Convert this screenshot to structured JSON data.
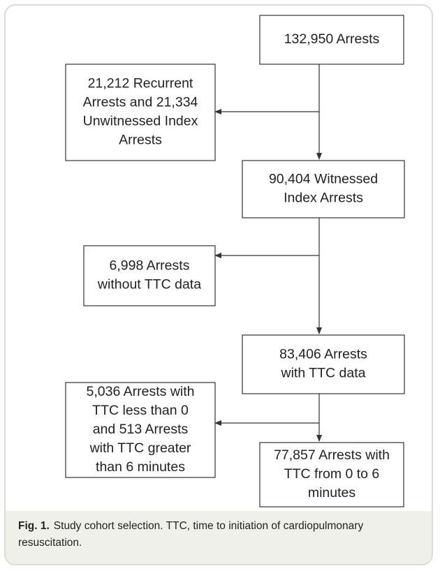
{
  "nodes": [
    {
      "lines": [
        "132,950 Arrests"
      ]
    },
    {
      "lines": [
        "21,212 Recurrent",
        "Arrests and 21,334",
        "Unwitnessed Index",
        "Arrests"
      ]
    },
    {
      "lines": [
        "90,404 Witnessed",
        "Index Arrests"
      ]
    },
    {
      "lines": [
        "6,998 Arrests",
        "without TTC data"
      ]
    },
    {
      "lines": [
        "83,406 Arrests",
        "with TTC data"
      ]
    },
    {
      "lines": [
        "5,036 Arrests with",
        "TTC less than 0",
        "and 513 Arrests",
        "with TTC greater",
        "than 6 minutes"
      ]
    },
    {
      "lines": [
        "77,857 Arrests with",
        "TTC from 0 to 6",
        "minutes"
      ]
    }
  ],
  "caption": {
    "label": "Fig. 1.",
    "text": "Study cohort selection. TTC, time to initiation of cardiopulmonary resuscitation."
  }
}
